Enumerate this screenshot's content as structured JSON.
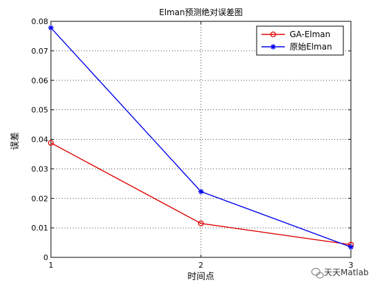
{
  "chart_data": {
    "type": "line",
    "title": "Elman预测绝对误差图",
    "xlabel": "时间点",
    "ylabel": "误差",
    "x": [
      1,
      2,
      3
    ],
    "xlim": [
      1,
      3
    ],
    "ylim": [
      0,
      0.08
    ],
    "xticks": [
      "1",
      "2",
      "3"
    ],
    "yticks": [
      "0",
      "0.01",
      "0.02",
      "0.03",
      "0.04",
      "0.05",
      "0.06",
      "0.07",
      "0.08"
    ],
    "grid": true,
    "legend_position": "top-right",
    "series": [
      {
        "name": "GA-Elman",
        "values": [
          0.0388,
          0.0115,
          0.0043
        ],
        "color": "#e00000",
        "marker": "circle"
      },
      {
        "name": "原始Elman",
        "values": [
          0.0778,
          0.0223,
          0.0035
        ],
        "color": "#0000ee",
        "marker": "star"
      }
    ]
  },
  "watermark": {
    "text": "天天Matlab"
  }
}
